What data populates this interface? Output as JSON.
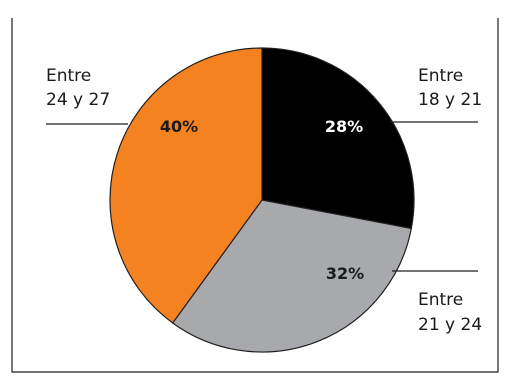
{
  "chart_data": {
    "type": "pie",
    "title": "",
    "slices": [
      {
        "label_line1": "Entre",
        "label_line2": "18 y 21",
        "value": 28,
        "value_label": "28%",
        "color": "#000000",
        "text_color": "#ffffff"
      },
      {
        "label_line1": "Entre",
        "label_line2": "21 y 24",
        "value": 32,
        "value_label": "32%",
        "color": "#a7a9ac",
        "text_color": "#1a1a1a"
      },
      {
        "label_line1": "Entre",
        "label_line2": "24 y 27",
        "value": 40,
        "value_label": "40%",
        "color": "#f58220",
        "text_color": "#1a1a1a"
      }
    ],
    "start_angle_deg": -90,
    "direction": "clockwise",
    "unit": "%"
  }
}
